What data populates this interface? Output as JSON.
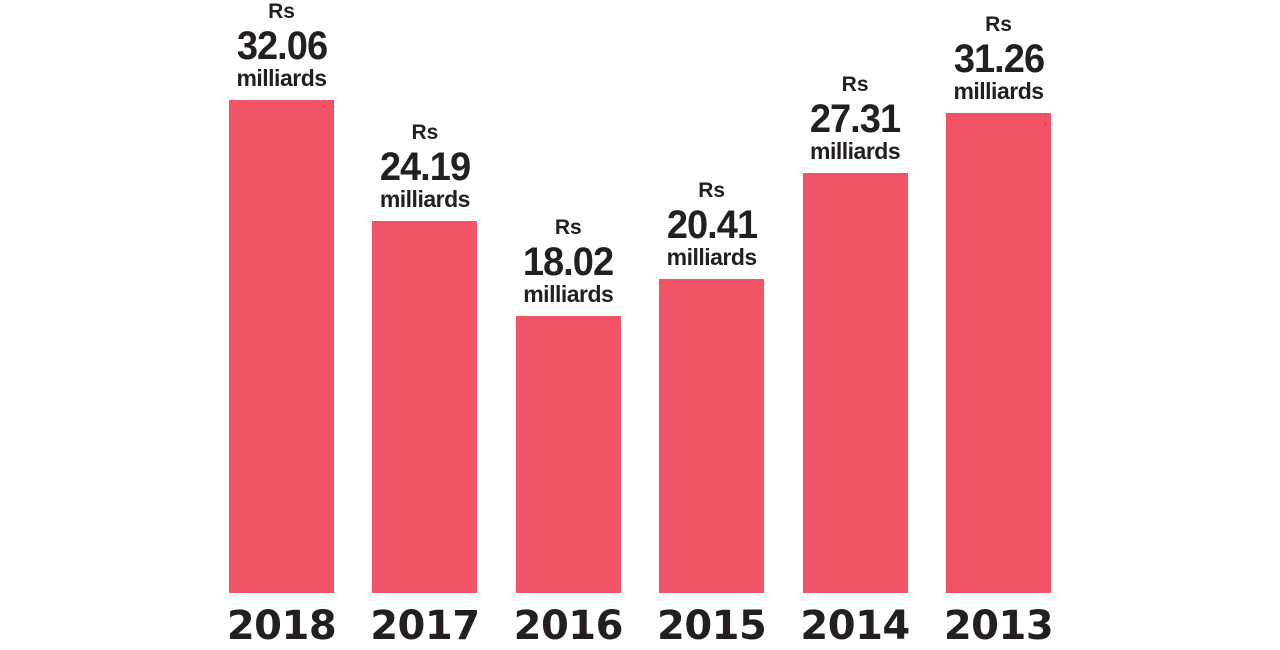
{
  "chart_data": {
    "type": "bar",
    "title": "",
    "xlabel": "",
    "ylabel": "",
    "categories": [
      "2018",
      "2017",
      "2016",
      "2015",
      "2014",
      "2013"
    ],
    "values": [
      32.06,
      24.19,
      18.02,
      20.41,
      27.31,
      31.26
    ],
    "data_labels": [
      {
        "prefix": "Rs",
        "value": "32.06",
        "unit": "milliards"
      },
      {
        "prefix": "Rs",
        "value": "24.19",
        "unit": "milliards"
      },
      {
        "prefix": "Rs",
        "value": "18.02",
        "unit": "milliards"
      },
      {
        "prefix": "Rs",
        "value": "20.41",
        "unit": "milliards"
      },
      {
        "prefix": "Rs",
        "value": "27.31",
        "unit": "milliards"
      },
      {
        "prefix": "Rs",
        "value": "31.26",
        "unit": "milliards"
      }
    ],
    "ylim": [
      0,
      38.6
    ],
    "grid": false,
    "bar_color": "#f05464",
    "text_color": "#231f20"
  }
}
